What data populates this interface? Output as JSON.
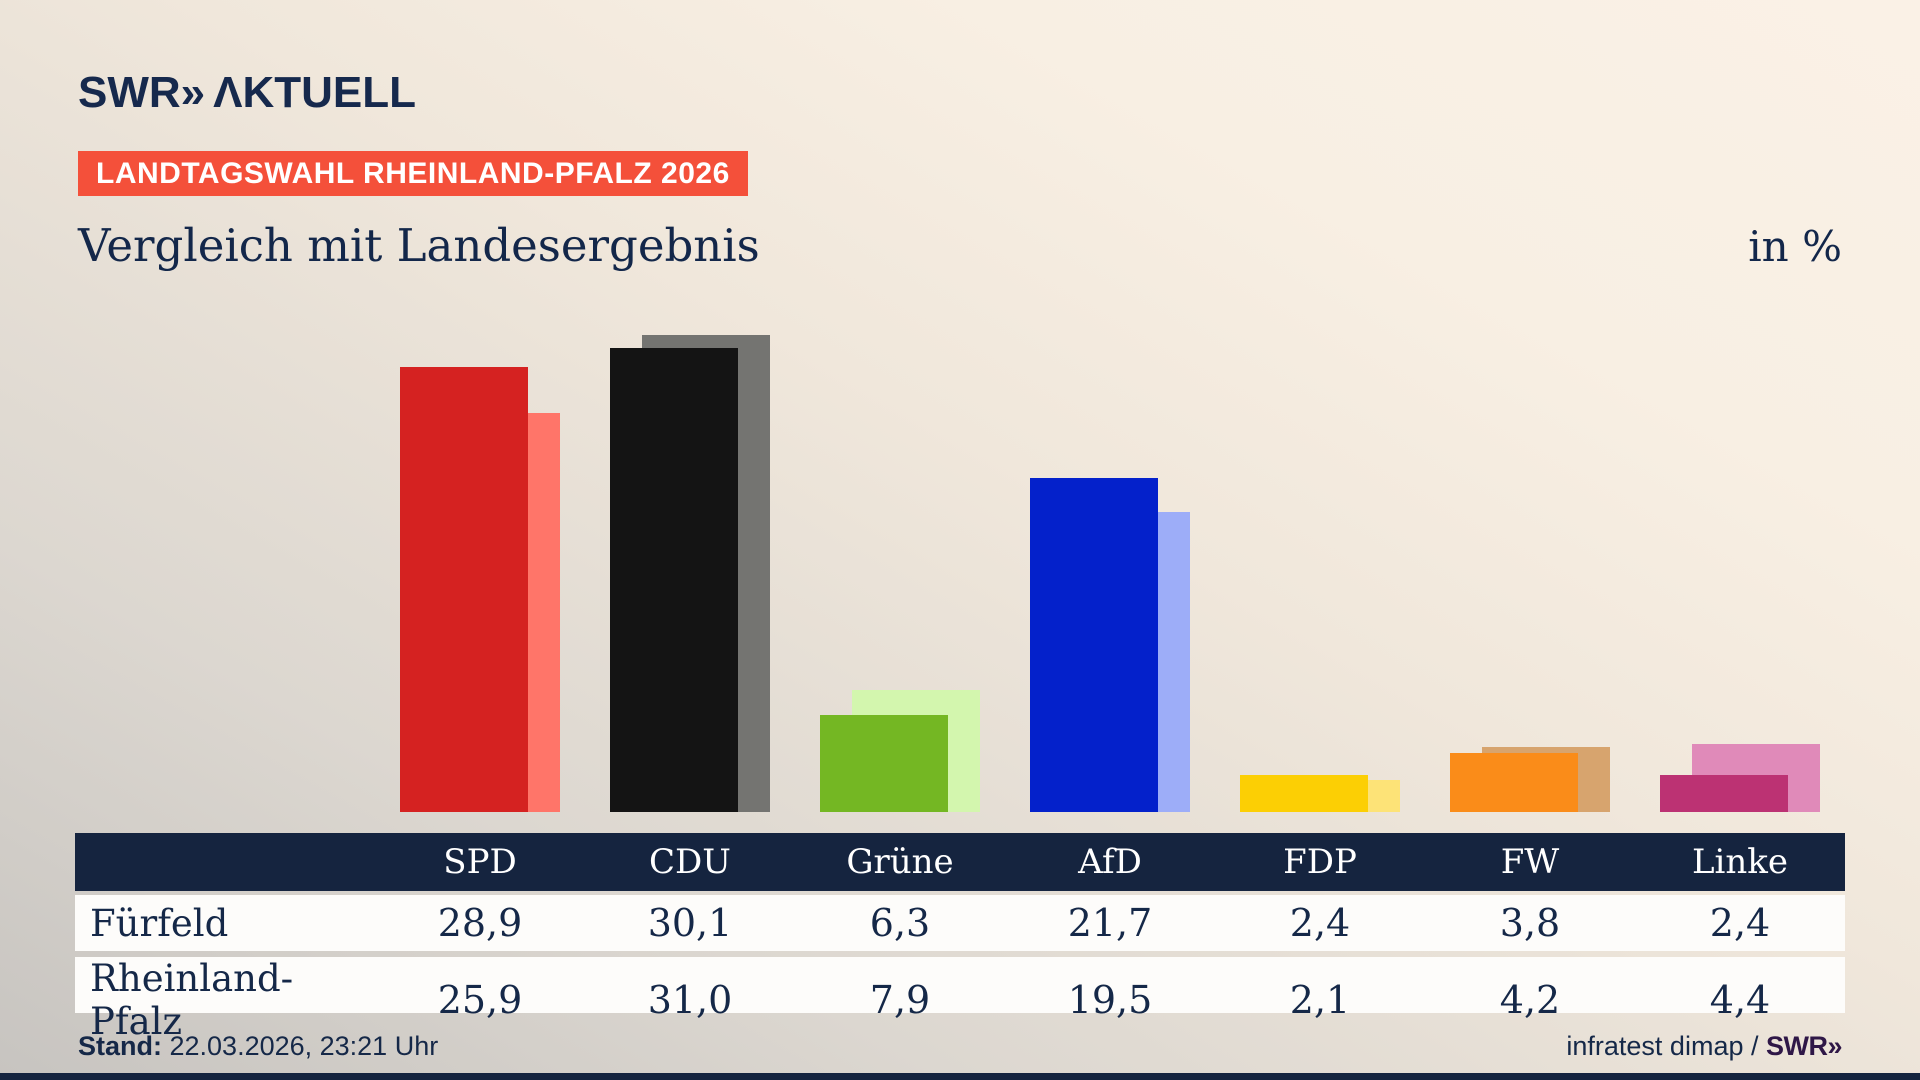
{
  "logo": {
    "swr": "SWR",
    "chevron": "»",
    "aktuell": "ΛKTUELL"
  },
  "badge": {
    "label": "LANDTAGSWAHL RHEINLAND-PFALZ 2026"
  },
  "title": {
    "text": "Vergleich mit Landesergebnis",
    "unit": "in %"
  },
  "chart_data": {
    "type": "bar",
    "title": "Vergleich mit Landesergebnis",
    "unit": "in %",
    "categories": [
      "SPD",
      "CDU",
      "Grüne",
      "AfD",
      "FDP",
      "FW",
      "Linke"
    ],
    "series": [
      {
        "name": "Fürfeld",
        "values": [
          28.9,
          30.1,
          6.3,
          21.7,
          2.4,
          3.8,
          2.4
        ]
      },
      {
        "name": "Rheinland-Pfalz",
        "values": [
          25.9,
          31.0,
          7.9,
          19.5,
          2.1,
          4.2,
          4.4
        ]
      }
    ],
    "party_colors_front": [
      "#d52221",
      "#141414",
      "#74b723",
      "#0421cb",
      "#fccf04",
      "#fa8c19",
      "#bc3273"
    ],
    "party_colors_back": [
      "#ff7569",
      "#747471",
      "#d3f6ae",
      "#9dadf8",
      "#fde377",
      "#d7a46e",
      "#e08ab9"
    ],
    "ylim": [
      0,
      33
    ],
    "grid": false,
    "legend": "none",
    "value_format": "decimal-comma"
  },
  "table": {
    "columns": [
      "SPD",
      "CDU",
      "Grüne",
      "AfD",
      "FDP",
      "FW",
      "Linke"
    ],
    "rows": [
      {
        "label": "Fürfeld",
        "values": [
          "28,9",
          "30,1",
          "6,3",
          "21,7",
          "2,4",
          "3,8",
          "2,4"
        ]
      },
      {
        "label": "Rheinland-Pfalz",
        "values": [
          "25,9",
          "31,0",
          "7,9",
          "19,5",
          "2,1",
          "4,2",
          "4,4"
        ]
      }
    ]
  },
  "footer": {
    "stand_label": "Stand:",
    "stand_value": " 22.03.2026, 23:21 Uhr",
    "source_prefix": "infratest dimap / ",
    "source_brand": "SWR»"
  },
  "colors": {
    "background_top_right": "#faf1e6",
    "background_bottom_left": "#c7c4c0",
    "navy": "#15243f",
    "text_navy": "#152848",
    "badge_red": "#f4503a",
    "footer_brand_purple": "#2f1747",
    "row_white": "#fdfcfa"
  }
}
